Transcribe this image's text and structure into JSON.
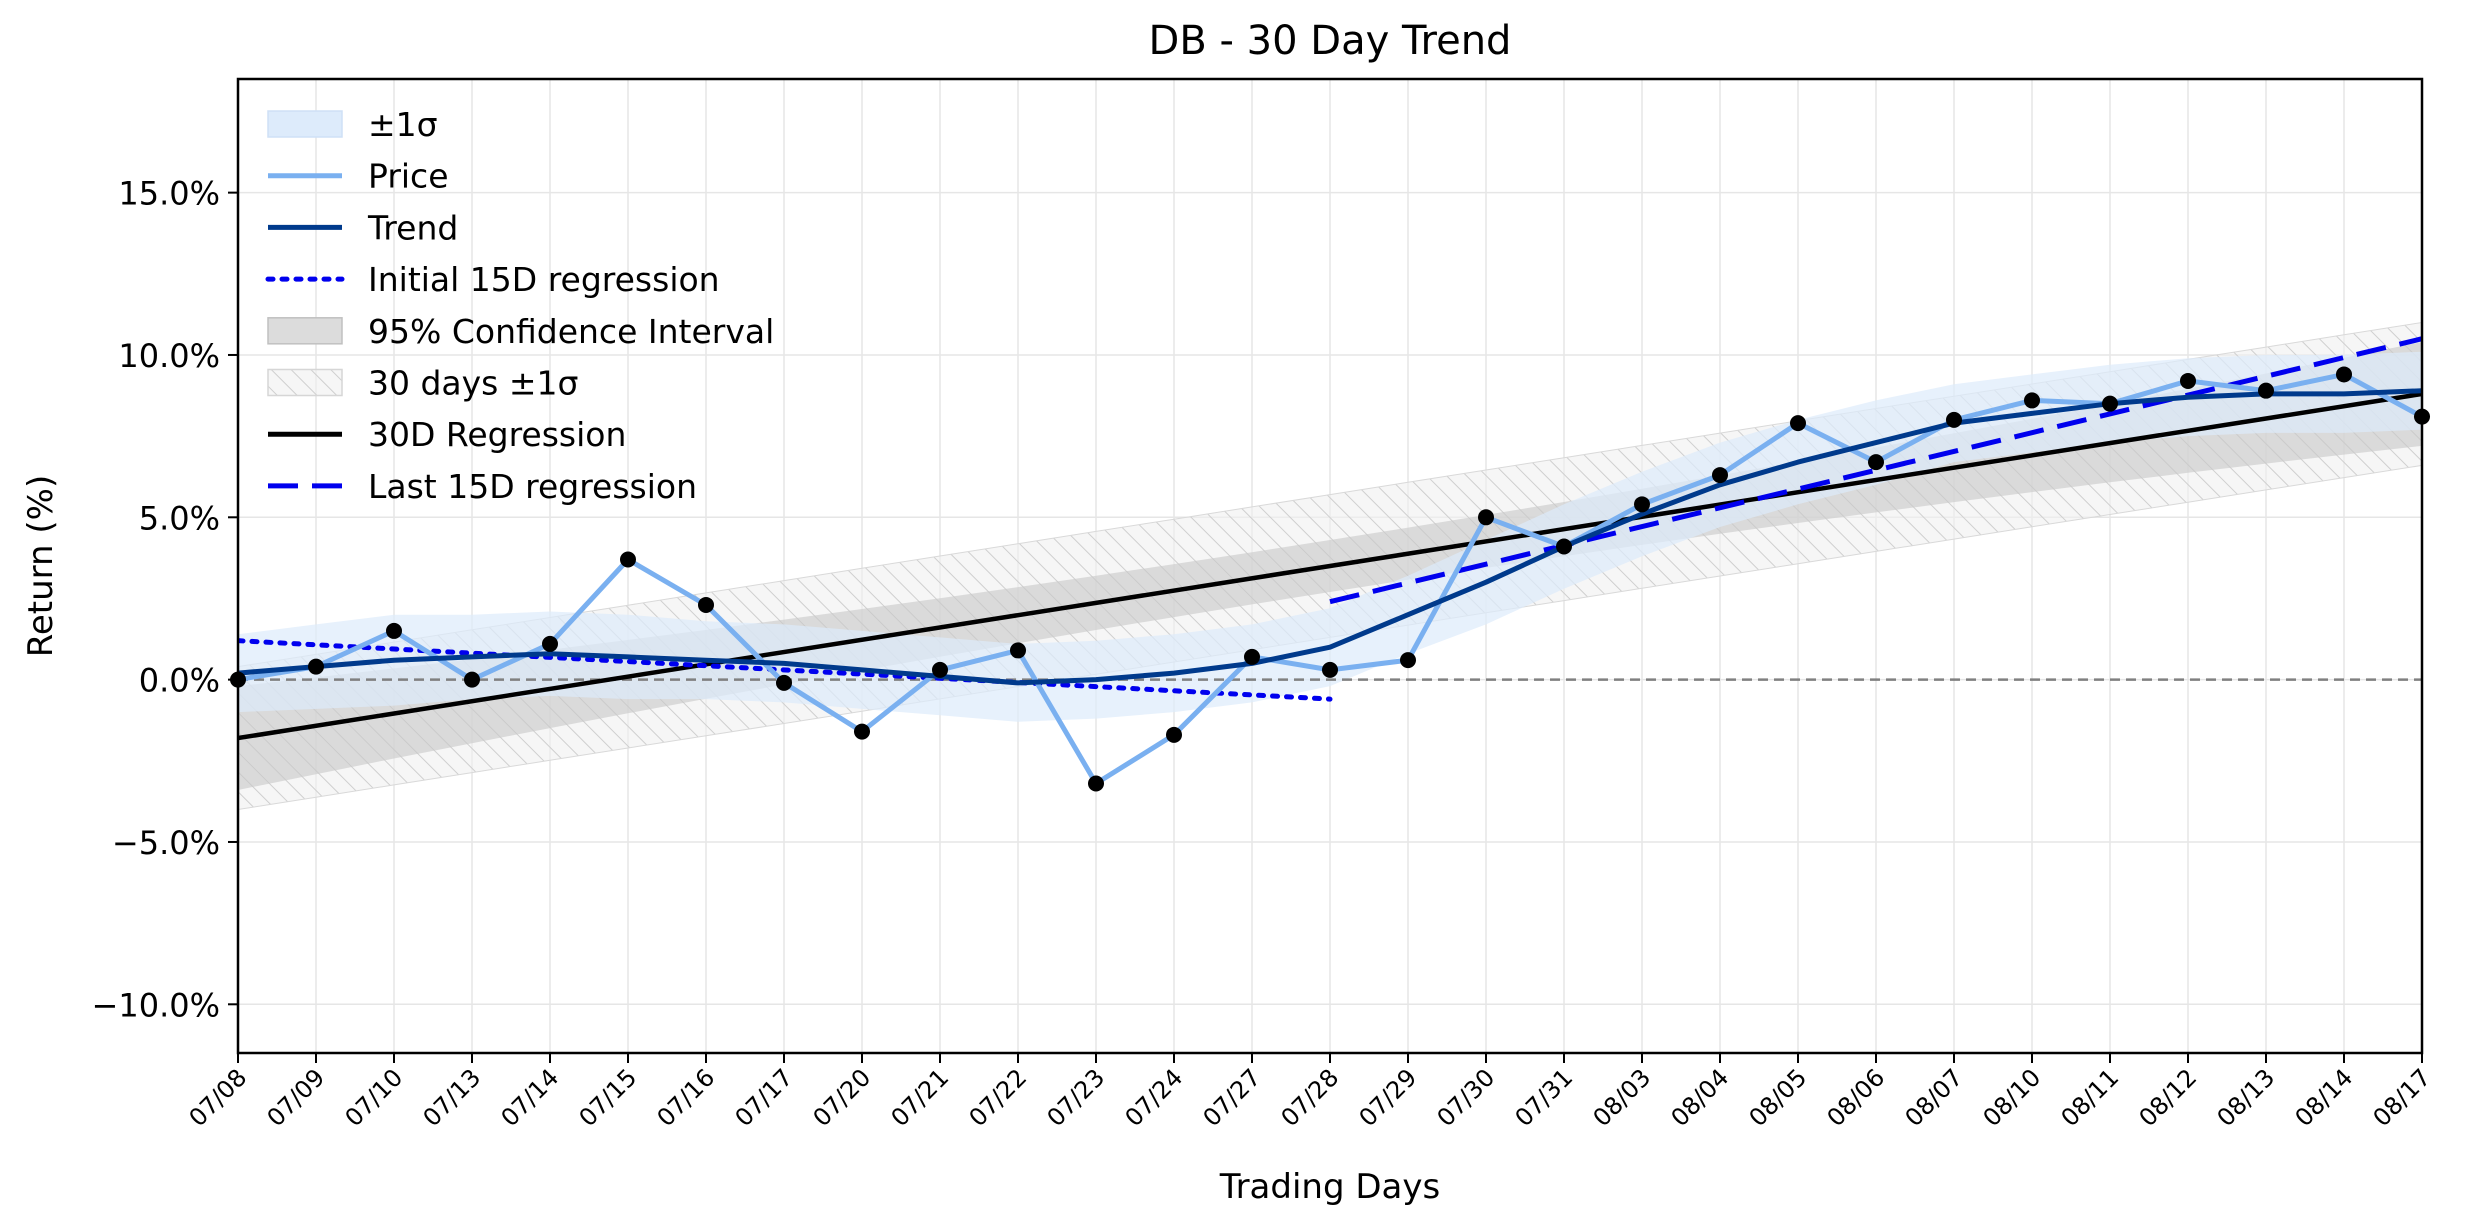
{
  "chart_data": {
    "type": "line",
    "title": "DB - 30 Day Trend",
    "xlabel": "Trading Days",
    "ylabel": "Return (%)",
    "ylim": [
      -11.5,
      18.5
    ],
    "yticks": [
      -10,
      -5,
      0,
      5,
      10,
      15
    ],
    "ytick_labels": [
      "−10.0%",
      "−5.0%",
      "0.0%",
      "5.0%",
      "10.0%",
      "15.0%"
    ],
    "grid": true,
    "legend_position": "top-left",
    "categories": [
      "07/08",
      "07/09",
      "07/10",
      "07/13",
      "07/14",
      "07/15",
      "07/16",
      "07/17",
      "07/20",
      "07/21",
      "07/22",
      "07/23",
      "07/24",
      "07/27",
      "07/28",
      "07/29",
      "07/30",
      "07/31",
      "08/03",
      "08/04",
      "08/05",
      "08/06",
      "08/07",
      "08/10",
      "08/11",
      "08/12",
      "08/13",
      "08/14",
      "08/17"
    ],
    "series": [
      {
        "name": "Price",
        "color": "#7ab0f0",
        "values": [
          0.0,
          0.4,
          1.5,
          0.0,
          1.1,
          3.7,
          2.3,
          -0.1,
          -1.6,
          0.3,
          0.9,
          -3.2,
          -1.7,
          0.7,
          0.3,
          0.6,
          5.0,
          4.1,
          5.4,
          6.3,
          7.9,
          6.7,
          8.0,
          8.6,
          8.5,
          9.2,
          8.9,
          9.4,
          8.1
        ]
      },
      {
        "name": "Trend",
        "color": "#003a8c",
        "values": [
          0.2,
          0.4,
          0.6,
          0.7,
          0.8,
          0.7,
          0.6,
          0.5,
          0.3,
          0.1,
          -0.1,
          0.0,
          0.2,
          0.5,
          1.0,
          2.0,
          3.0,
          4.1,
          5.1,
          6.0,
          6.7,
          7.3,
          7.9,
          8.2,
          8.5,
          8.7,
          8.8,
          8.8,
          8.9
        ]
      },
      {
        "name": "30D Regression",
        "color": "#000000",
        "start": -1.8,
        "end": 8.8
      },
      {
        "name": "Initial 15D regression",
        "color": "#0000ee",
        "x_range": [
          "07/08",
          "07/28"
        ],
        "start": 1.2,
        "end": -0.6
      },
      {
        "name": "Last 15D regression",
        "color": "#0000ee",
        "x_range": [
          "07/28",
          "08/17"
        ],
        "start": 2.4,
        "end": 10.5
      }
    ],
    "bands": [
      {
        "name": "±1σ",
        "color": "#ddebfb",
        "half_width": [
          1.2,
          1.3,
          1.4,
          1.3,
          1.3,
          1.3,
          1.2,
          1.2,
          1.2,
          1.2,
          1.2,
          1.2,
          1.2,
          1.2,
          1.2,
          1.2,
          1.3,
          1.3,
          1.3,
          1.3,
          1.3,
          1.3,
          1.2,
          1.2,
          1.2,
          1.2,
          1.2,
          1.2,
          1.2
        ]
      },
      {
        "name": "95% Confidence Interval",
        "color": "#c8c8c8",
        "half_width_ends": 1.6,
        "half_width_mid": 0.8
      },
      {
        "name": "30 days ±1σ",
        "color": "#e9e9e9",
        "half_width": 2.2
      }
    ],
    "reference_line": {
      "y": 0,
      "style": "dashed",
      "color": "#808080"
    }
  }
}
